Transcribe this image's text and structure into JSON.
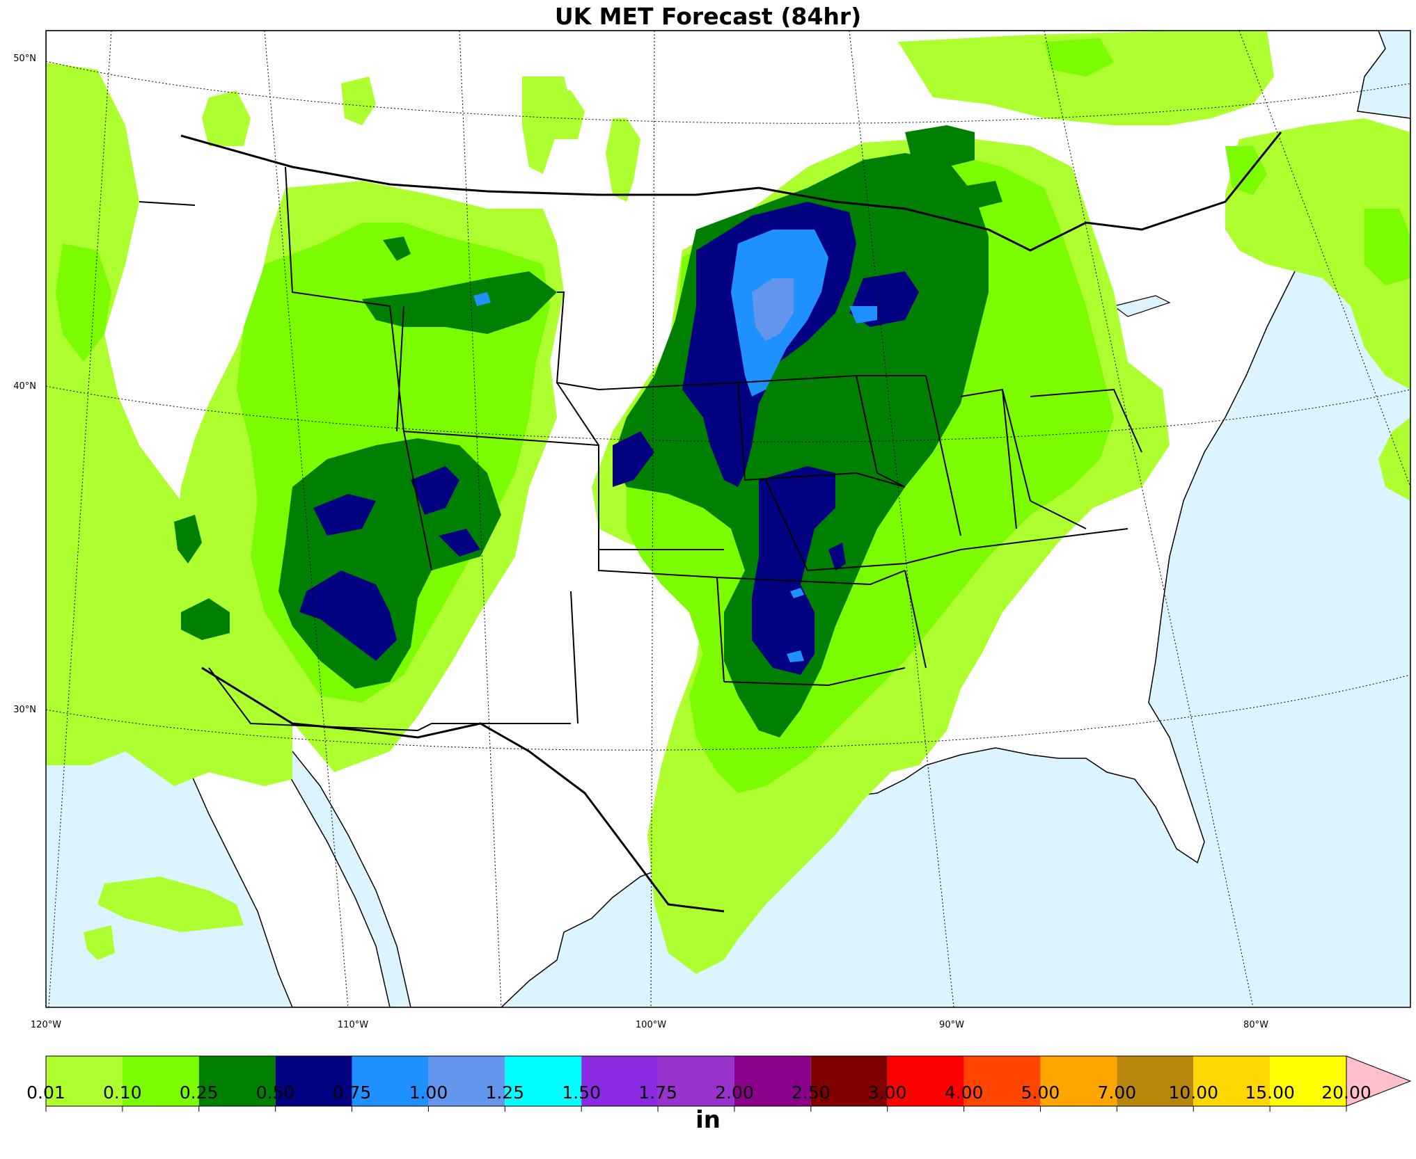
{
  "title": "UK MET Forecast (84hr)",
  "map": {
    "region": "Continental United States",
    "lat_labels": [
      "50°N",
      "40°N",
      "30°N"
    ],
    "lon_labels": [
      "120°W",
      "110°W",
      "100°W",
      "90°W",
      "80°W"
    ],
    "colors": {
      "ocean": "#dcf4ff",
      "land": "#ffffff",
      "boundary": "#000000"
    }
  },
  "colorbar": {
    "units": "in",
    "levels": [
      "0.01",
      "0.10",
      "0.25",
      "0.50",
      "0.75",
      "1.00",
      "1.25",
      "1.50",
      "1.75",
      "2.00",
      "2.50",
      "3.00",
      "4.00",
      "5.00",
      "7.00",
      "10.00",
      "15.00",
      "20.00"
    ],
    "colors": [
      "#adff2f",
      "#7cfc00",
      "#008000",
      "#000080",
      "#1e90ff",
      "#6495ed",
      "#00ffff",
      "#8a2be2",
      "#9932cc",
      "#8b008b",
      "#800000",
      "#ff0000",
      "#ff4500",
      "#ffa500",
      "#b8860b",
      "#ffd700",
      "#ffff00"
    ],
    "extend_color": "#ffc0cb"
  }
}
